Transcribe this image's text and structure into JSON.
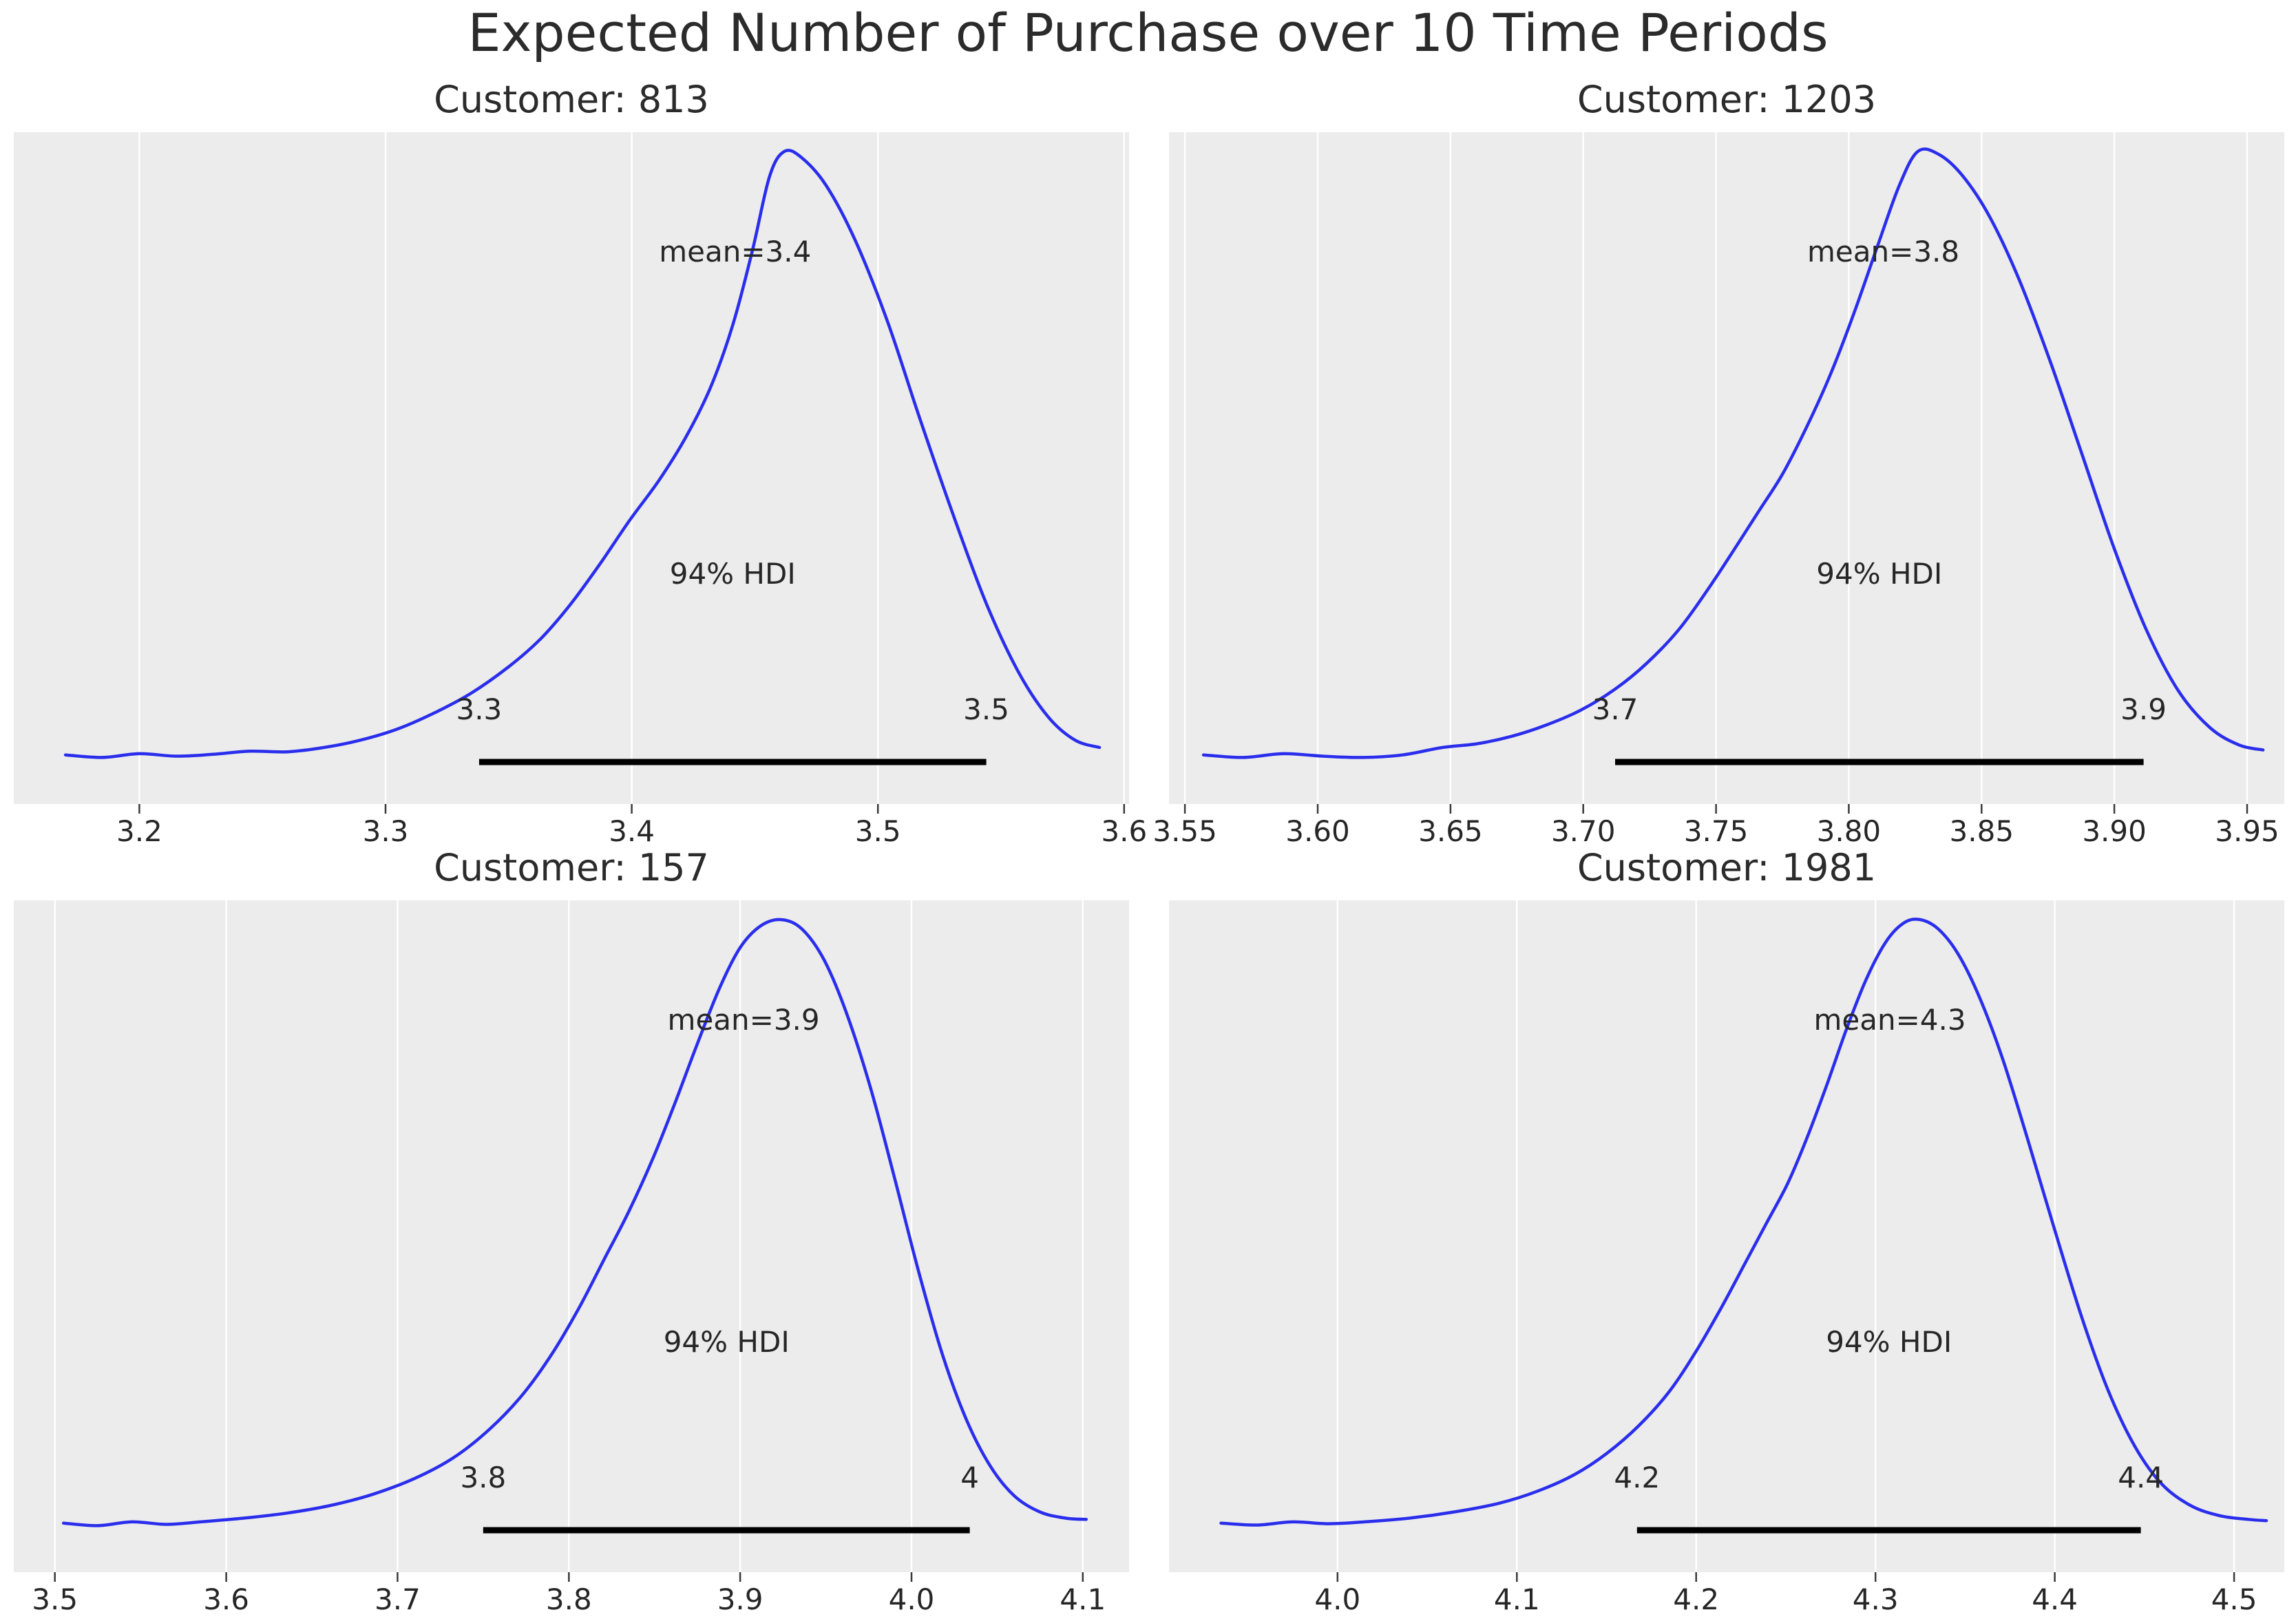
{
  "header": {
    "title": "Expected Number of Purchase over 10 Time Periods"
  },
  "style": {
    "figure_bg": "#ffffff",
    "plot_bg": "#ececec",
    "grid_color": "#ffffff",
    "line_color": "#2a2eec",
    "hdi_bar_color": "#000000",
    "text_color": "#262626",
    "tick_color": "#3a3a3a"
  },
  "chart_data": [
    {
      "type": "kde",
      "title": "Customer: 813",
      "mean_label": "mean=3.4",
      "mean_value": 3.4,
      "mean_label_x": 3.442,
      "hdi_text": "94% HDI",
      "hdi_probability": 0.94,
      "hdi": [
        3.338,
        3.544
      ],
      "hdi_labels": [
        "3.3",
        "3.5"
      ],
      "xlim": [
        3.149,
        3.602
      ],
      "xticks": [
        3.2,
        3.3,
        3.4,
        3.5,
        3.6
      ],
      "xtick_labels": [
        "3.2",
        "3.3",
        "3.4",
        "3.5",
        "3.6"
      ],
      "grid": true,
      "points": [
        [
          3.17,
          0.028
        ],
        [
          3.185,
          0.024
        ],
        [
          3.2,
          0.03
        ],
        [
          3.215,
          0.026
        ],
        [
          3.23,
          0.029
        ],
        [
          3.245,
          0.034
        ],
        [
          3.26,
          0.033
        ],
        [
          3.275,
          0.04
        ],
        [
          3.29,
          0.052
        ],
        [
          3.305,
          0.07
        ],
        [
          3.32,
          0.096
        ],
        [
          3.335,
          0.128
        ],
        [
          3.35,
          0.17
        ],
        [
          3.363,
          0.215
        ],
        [
          3.375,
          0.27
        ],
        [
          3.387,
          0.335
        ],
        [
          3.399,
          0.405
        ],
        [
          3.411,
          0.47
        ],
        [
          3.422,
          0.54
        ],
        [
          3.432,
          0.62
        ],
        [
          3.441,
          0.72
        ],
        [
          3.449,
          0.84
        ],
        [
          3.456,
          0.96
        ],
        [
          3.462,
          1.0
        ],
        [
          3.469,
          0.99
        ],
        [
          3.479,
          0.945
        ],
        [
          3.491,
          0.855
        ],
        [
          3.504,
          0.725
        ],
        [
          3.517,
          0.57
        ],
        [
          3.531,
          0.41
        ],
        [
          3.544,
          0.272
        ],
        [
          3.557,
          0.162
        ],
        [
          3.569,
          0.09
        ],
        [
          3.58,
          0.052
        ],
        [
          3.59,
          0.04
        ]
      ]
    },
    {
      "type": "kde",
      "title": "Customer: 1203",
      "mean_label": "mean=3.8",
      "mean_value": 3.8,
      "mean_label_x": 3.813,
      "hdi_text": "94% HDI",
      "hdi_probability": 0.94,
      "hdi": [
        3.712,
        3.911
      ],
      "hdi_labels": [
        "3.7",
        "3.9"
      ],
      "xlim": [
        3.544,
        3.964
      ],
      "xticks": [
        3.55,
        3.6,
        3.65,
        3.7,
        3.75,
        3.8,
        3.85,
        3.9,
        3.95
      ],
      "xtick_labels": [
        "3.55",
        "3.60",
        "3.65",
        "3.70",
        "3.75",
        "3.80",
        "3.85",
        "3.90",
        "3.95"
      ],
      "grid": true,
      "points": [
        [
          3.557,
          0.028
        ],
        [
          3.572,
          0.024
        ],
        [
          3.587,
          0.03
        ],
        [
          3.602,
          0.026
        ],
        [
          3.617,
          0.024
        ],
        [
          3.632,
          0.028
        ],
        [
          3.647,
          0.04
        ],
        [
          3.66,
          0.046
        ],
        [
          3.673,
          0.058
        ],
        [
          3.686,
          0.076
        ],
        [
          3.699,
          0.1
        ],
        [
          3.712,
          0.134
        ],
        [
          3.724,
          0.176
        ],
        [
          3.736,
          0.23
        ],
        [
          3.747,
          0.295
        ],
        [
          3.757,
          0.36
        ],
        [
          3.766,
          0.42
        ],
        [
          3.775,
          0.48
        ],
        [
          3.784,
          0.555
        ],
        [
          3.793,
          0.64
        ],
        [
          3.802,
          0.74
        ],
        [
          3.811,
          0.85
        ],
        [
          3.819,
          0.945
        ],
        [
          3.826,
          1.0
        ],
        [
          3.834,
          0.995
        ],
        [
          3.843,
          0.96
        ],
        [
          3.853,
          0.895
        ],
        [
          3.864,
          0.795
        ],
        [
          3.876,
          0.66
        ],
        [
          3.888,
          0.51
        ],
        [
          3.9,
          0.36
        ],
        [
          3.912,
          0.23
        ],
        [
          3.924,
          0.132
        ],
        [
          3.936,
          0.072
        ],
        [
          3.947,
          0.044
        ],
        [
          3.956,
          0.036
        ]
      ]
    },
    {
      "type": "kde",
      "title": "Customer: 157",
      "mean_label": "mean=3.9",
      "mean_value": 3.9,
      "mean_label_x": 3.902,
      "hdi_text": "94% HDI",
      "hdi_probability": 0.94,
      "hdi": [
        3.75,
        4.034
      ],
      "hdi_labels": [
        "3.8",
        "4"
      ],
      "xlim": [
        3.476,
        4.127
      ],
      "xticks": [
        3.5,
        3.6,
        3.7,
        3.8,
        3.9,
        4.0,
        4.1
      ],
      "xtick_labels": [
        "3.5",
        "3.6",
        "3.7",
        "3.8",
        "3.9",
        "4.0",
        "4.1"
      ],
      "grid": true,
      "points": [
        [
          3.505,
          0.028
        ],
        [
          3.525,
          0.024
        ],
        [
          3.545,
          0.03
        ],
        [
          3.565,
          0.026
        ],
        [
          3.585,
          0.03
        ],
        [
          3.61,
          0.036
        ],
        [
          3.635,
          0.044
        ],
        [
          3.66,
          0.056
        ],
        [
          3.685,
          0.074
        ],
        [
          3.71,
          0.1
        ],
        [
          3.733,
          0.134
        ],
        [
          3.754,
          0.18
        ],
        [
          3.773,
          0.235
        ],
        [
          3.79,
          0.3
        ],
        [
          3.806,
          0.375
        ],
        [
          3.821,
          0.455
        ],
        [
          3.835,
          0.53
        ],
        [
          3.849,
          0.615
        ],
        [
          3.862,
          0.705
        ],
        [
          3.875,
          0.8
        ],
        [
          3.888,
          0.89
        ],
        [
          3.9,
          0.955
        ],
        [
          3.912,
          0.99
        ],
        [
          3.924,
          1.0
        ],
        [
          3.936,
          0.985
        ],
        [
          3.949,
          0.935
        ],
        [
          3.962,
          0.85
        ],
        [
          3.976,
          0.73
        ],
        [
          3.99,
          0.585
        ],
        [
          4.004,
          0.435
        ],
        [
          4.018,
          0.3
        ],
        [
          4.032,
          0.195
        ],
        [
          4.046,
          0.12
        ],
        [
          4.06,
          0.072
        ],
        [
          4.075,
          0.046
        ],
        [
          4.09,
          0.036
        ],
        [
          4.102,
          0.034
        ]
      ]
    },
    {
      "type": "kde",
      "title": "Customer: 1981",
      "mean_label": "mean=4.3",
      "mean_value": 4.3,
      "mean_label_x": 4.308,
      "hdi_text": "94% HDI",
      "hdi_probability": 0.94,
      "hdi": [
        4.167,
        4.448
      ],
      "hdi_labels": [
        "4.2",
        "4.4"
      ],
      "xlim": [
        3.906,
        4.528
      ],
      "xticks": [
        4.0,
        4.1,
        4.2,
        4.3,
        4.4,
        4.5
      ],
      "xtick_labels": [
        "4.0",
        "4.1",
        "4.2",
        "4.3",
        "4.4",
        "4.5"
      ],
      "grid": true,
      "points": [
        [
          3.935,
          0.028
        ],
        [
          3.955,
          0.025
        ],
        [
          3.975,
          0.03
        ],
        [
          3.995,
          0.027
        ],
        [
          4.015,
          0.03
        ],
        [
          4.04,
          0.036
        ],
        [
          4.065,
          0.046
        ],
        [
          4.09,
          0.06
        ],
        [
          4.112,
          0.08
        ],
        [
          4.132,
          0.106
        ],
        [
          4.15,
          0.14
        ],
        [
          4.168,
          0.185
        ],
        [
          4.185,
          0.24
        ],
        [
          4.2,
          0.305
        ],
        [
          4.214,
          0.375
        ],
        [
          4.227,
          0.445
        ],
        [
          4.239,
          0.51
        ],
        [
          4.251,
          0.575
        ],
        [
          4.262,
          0.65
        ],
        [
          4.273,
          0.735
        ],
        [
          4.284,
          0.825
        ],
        [
          4.295,
          0.905
        ],
        [
          4.306,
          0.965
        ],
        [
          4.316,
          0.995
        ],
        [
          4.325,
          1.0
        ],
        [
          4.335,
          0.985
        ],
        [
          4.346,
          0.945
        ],
        [
          4.358,
          0.875
        ],
        [
          4.371,
          0.775
        ],
        [
          4.385,
          0.645
        ],
        [
          4.4,
          0.5
        ],
        [
          4.415,
          0.36
        ],
        [
          4.43,
          0.24
        ],
        [
          4.445,
          0.15
        ],
        [
          4.46,
          0.09
        ],
        [
          4.476,
          0.056
        ],
        [
          4.492,
          0.04
        ],
        [
          4.508,
          0.034
        ],
        [
          4.518,
          0.032
        ]
      ]
    }
  ]
}
